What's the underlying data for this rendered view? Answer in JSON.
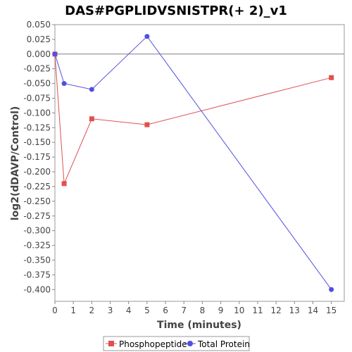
{
  "chart_data": {
    "type": "line",
    "title": "DAS#PGPLIDVSNISTPR(+ 2)_v1",
    "xlabel": "Time (minutes)",
    "ylabel": "log2(dDAVP/Control)",
    "xlim": [
      0,
      15.7
    ],
    "ylim": [
      -0.42,
      0.05
    ],
    "x_ticks": [
      0,
      1,
      2,
      3,
      4,
      5,
      6,
      7,
      8,
      9,
      10,
      11,
      12,
      13,
      14,
      15
    ],
    "y_ticks": [
      0.05,
      0.025,
      0.0,
      -0.025,
      -0.05,
      -0.075,
      -0.1,
      -0.125,
      -0.15,
      -0.175,
      -0.2,
      -0.225,
      -0.25,
      -0.275,
      -0.3,
      -0.325,
      -0.35,
      -0.375,
      -0.4
    ],
    "y_tick_labels": [
      "0.050",
      "0.025",
      "0.000",
      "-0.025",
      "-0.050",
      "-0.075",
      "-0.100",
      "-0.125",
      "-0.150",
      "-0.175",
      "-0.200",
      "-0.225",
      "-0.250",
      "-0.275",
      "-0.300",
      "-0.325",
      "-0.350",
      "-0.375",
      "-0.400"
    ],
    "grid": false,
    "reference_line_y": 0,
    "legend_position": "bottom",
    "series": [
      {
        "name": "Phosphopeptide",
        "color": "#e05050",
        "marker": "square",
        "x": [
          0,
          0.5,
          2,
          5,
          15
        ],
        "y": [
          0.0,
          -0.22,
          -0.11,
          -0.12,
          -0.04
        ]
      },
      {
        "name": "Total Protein",
        "color": "#5050e0",
        "marker": "circle",
        "x": [
          0,
          0.5,
          2,
          5,
          15
        ],
        "y": [
          0.0,
          -0.05,
          -0.06,
          0.03,
          -0.4
        ]
      }
    ]
  }
}
